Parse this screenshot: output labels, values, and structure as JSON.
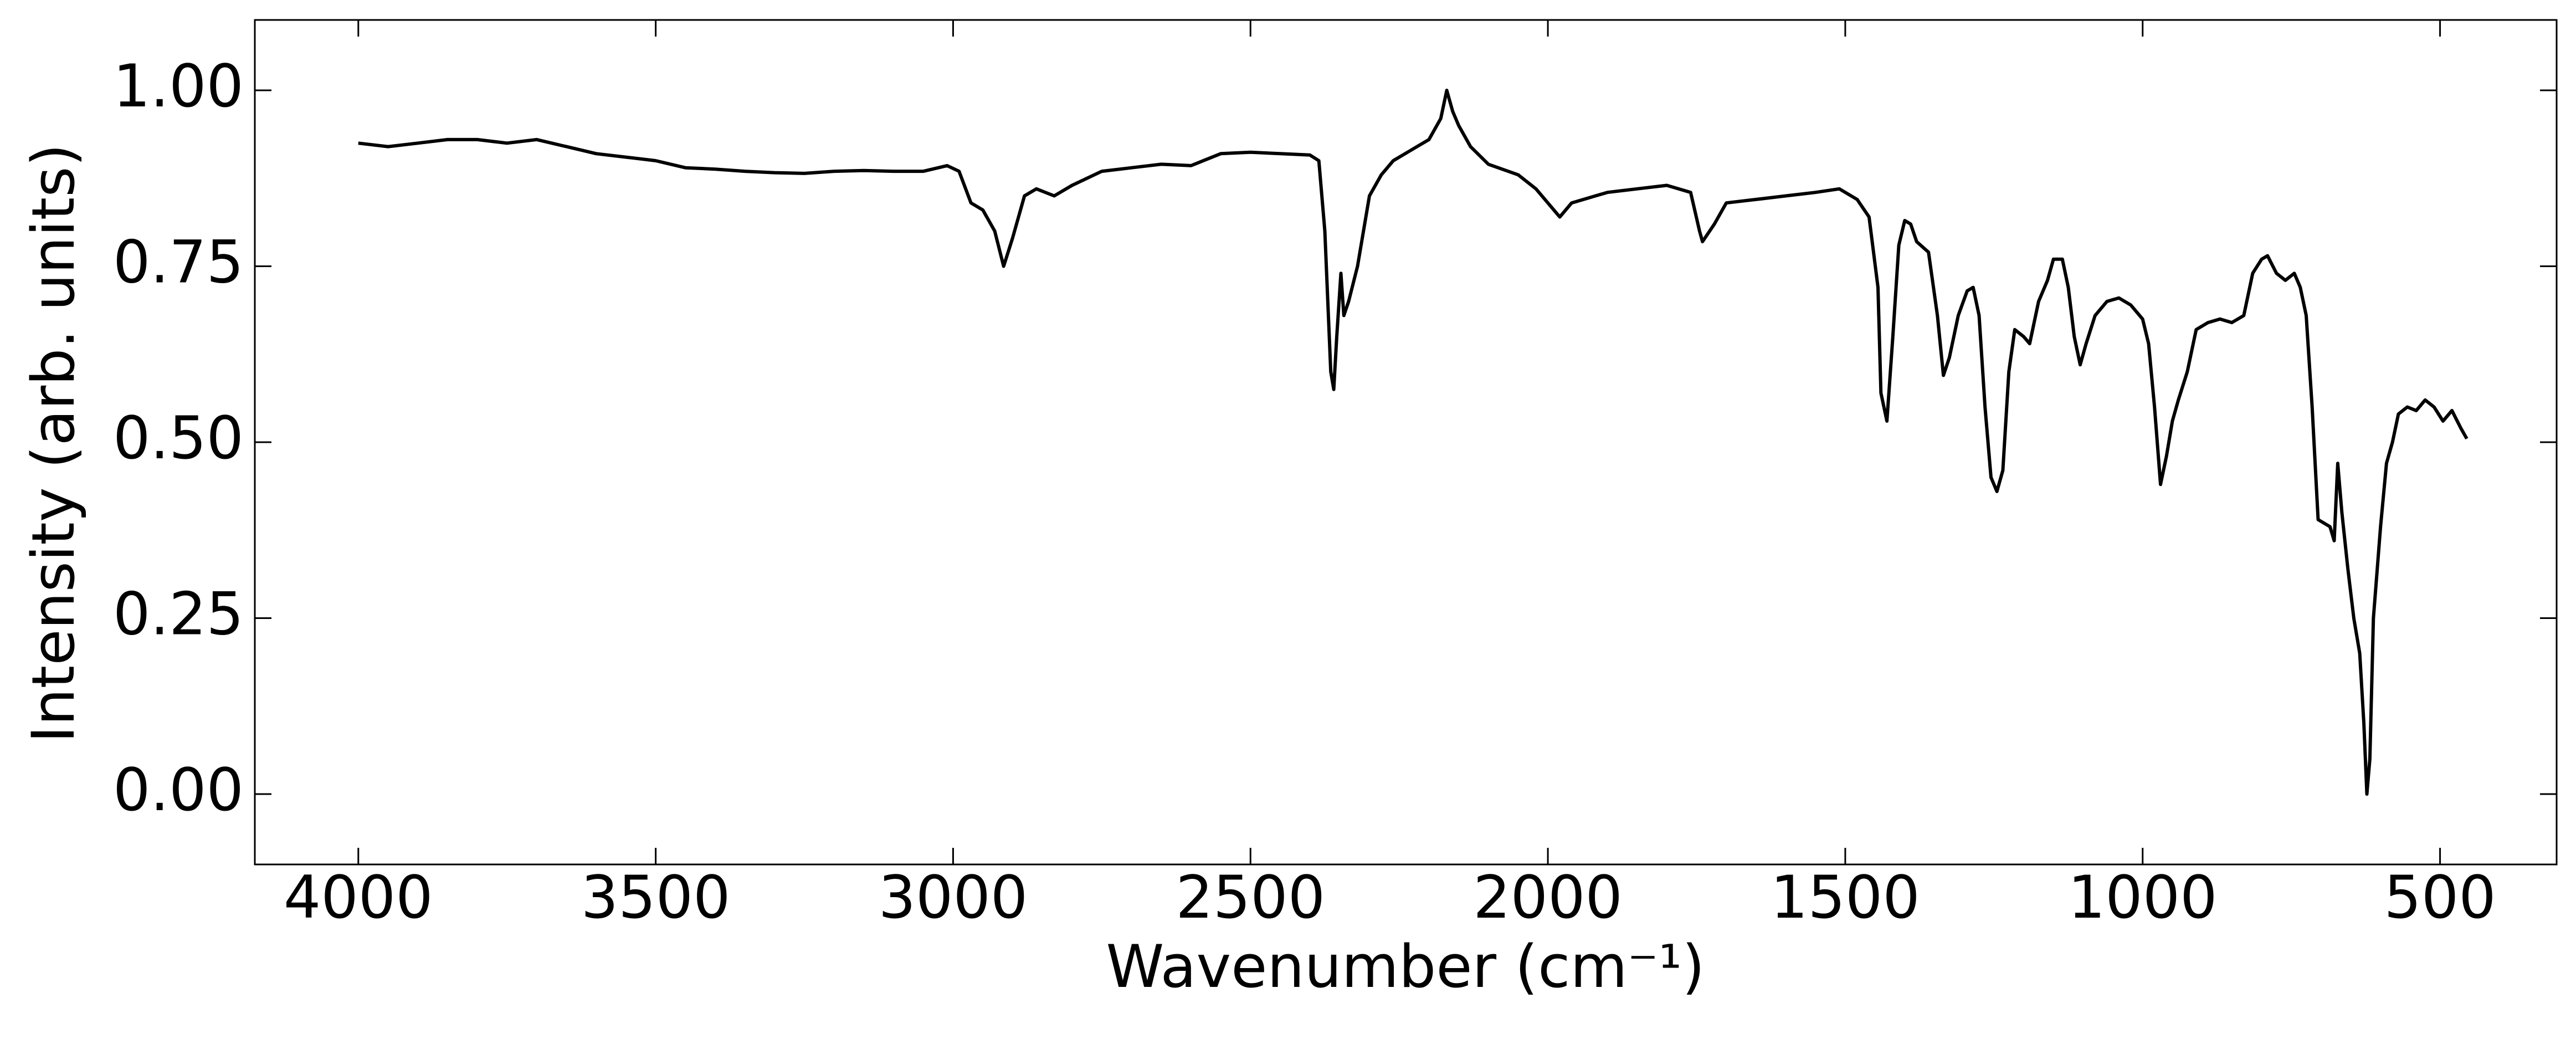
{
  "chart_data": {
    "type": "line",
    "xlabel": "Wavenumber (cm⁻¹)",
    "ylabel": "Intensity (arb. units)",
    "color": "#000000",
    "xlim": [
      4174,
      304
    ],
    "ylim": [
      -0.1,
      1.1
    ],
    "xticks": [
      4000,
      3500,
      3000,
      2500,
      2000,
      1500,
      1000,
      500
    ],
    "yticks": [
      {
        "value": 0,
        "label": "0.00"
      },
      {
        "value": 0.25,
        "label": "0.25"
      },
      {
        "value": 0.5,
        "label": "0.50"
      },
      {
        "value": 0.75,
        "label": "0.75"
      },
      {
        "value": 1,
        "label": "1.00"
      }
    ],
    "x": [
      4000,
      3950,
      3900,
      3850,
      3800,
      3750,
      3700,
      3650,
      3600,
      3550,
      3500,
      3450,
      3400,
      3350,
      3300,
      3250,
      3200,
      3150,
      3100,
      3050,
      3010,
      2990,
      2970,
      2950,
      2930,
      2915,
      2900,
      2880,
      2860,
      2830,
      2800,
      2750,
      2700,
      2650,
      2600,
      2550,
      2500,
      2450,
      2400,
      2385,
      2375,
      2365,
      2360,
      2355,
      2348,
      2343,
      2335,
      2320,
      2300,
      2280,
      2260,
      2240,
      2220,
      2200,
      2180,
      2170,
      2160,
      2150,
      2130,
      2100,
      2050,
      2020,
      2000,
      1980,
      1960,
      1920,
      1900,
      1850,
      1800,
      1760,
      1745,
      1740,
      1720,
      1700,
      1650,
      1600,
      1550,
      1510,
      1480,
      1460,
      1445,
      1440,
      1430,
      1420,
      1410,
      1400,
      1390,
      1380,
      1360,
      1345,
      1335,
      1325,
      1310,
      1295,
      1285,
      1275,
      1265,
      1255,
      1245,
      1235,
      1225,
      1215,
      1200,
      1190,
      1175,
      1160,
      1150,
      1135,
      1125,
      1115,
      1105,
      1095,
      1080,
      1060,
      1040,
      1020,
      1000,
      990,
      980,
      970,
      960,
      950,
      940,
      925,
      910,
      890,
      870,
      850,
      830,
      815,
      800,
      790,
      775,
      760,
      745,
      735,
      725,
      715,
      705,
      695,
      685,
      678,
      672,
      665,
      655,
      645,
      635,
      628,
      623,
      618,
      612,
      600,
      590,
      580,
      570,
      555,
      540,
      525,
      510,
      495,
      480,
      465,
      455
    ],
    "values": [
      0.925,
      0.92,
      0.925,
      0.93,
      0.93,
      0.925,
      0.93,
      0.92,
      0.91,
      0.905,
      0.9,
      0.89,
      0.888,
      0.885,
      0.883,
      0.882,
      0.885,
      0.886,
      0.885,
      0.885,
      0.893,
      0.885,
      0.84,
      0.83,
      0.8,
      0.75,
      0.79,
      0.85,
      0.86,
      0.85,
      0.865,
      0.885,
      0.89,
      0.895,
      0.893,
      0.91,
      0.912,
      0.91,
      0.908,
      0.9,
      0.8,
      0.6,
      0.575,
      0.65,
      0.74,
      0.68,
      0.7,
      0.75,
      0.85,
      0.88,
      0.9,
      0.91,
      0.92,
      0.93,
      0.96,
      1.0,
      0.97,
      0.95,
      0.92,
      0.895,
      0.88,
      0.86,
      0.84,
      0.82,
      0.84,
      0.85,
      0.855,
      0.86,
      0.865,
      0.855,
      0.8,
      0.785,
      0.81,
      0.84,
      0.845,
      0.85,
      0.855,
      0.86,
      0.845,
      0.82,
      0.72,
      0.57,
      0.53,
      0.65,
      0.78,
      0.815,
      0.81,
      0.785,
      0.77,
      0.68,
      0.595,
      0.62,
      0.68,
      0.715,
      0.72,
      0.68,
      0.55,
      0.45,
      0.43,
      0.46,
      0.6,
      0.66,
      0.65,
      0.64,
      0.7,
      0.73,
      0.76,
      0.76,
      0.72,
      0.65,
      0.61,
      0.64,
      0.68,
      0.7,
      0.705,
      0.695,
      0.675,
      0.64,
      0.55,
      0.44,
      0.48,
      0.53,
      0.56,
      0.6,
      0.66,
      0.67,
      0.675,
      0.67,
      0.68,
      0.74,
      0.76,
      0.765,
      0.74,
      0.73,
      0.74,
      0.72,
      0.68,
      0.55,
      0.39,
      0.385,
      0.38,
      0.36,
      0.47,
      0.4,
      0.32,
      0.25,
      0.2,
      0.1,
      0.0,
      0.05,
      0.25,
      0.38,
      0.47,
      0.5,
      0.54,
      0.55,
      0.545,
      0.56,
      0.55,
      0.53,
      0.545,
      0.52,
      0.505
    ]
  }
}
